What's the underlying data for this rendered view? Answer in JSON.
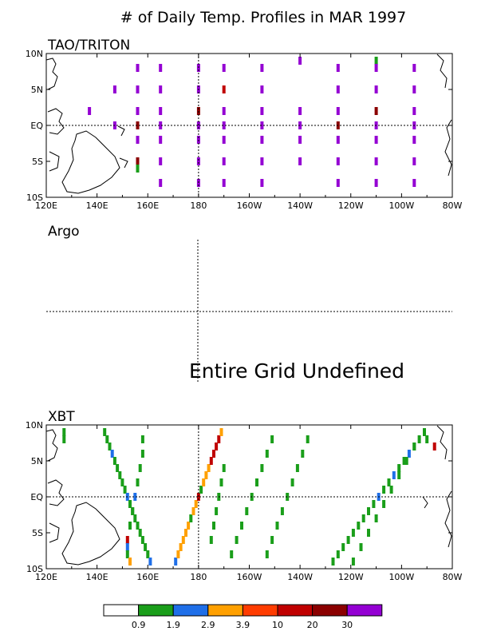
{
  "title": "# of Daily Temp. Profiles in MAR 1997",
  "colors": {
    "frame": "#000000",
    "text": "#000000"
  },
  "colorbar": {
    "colors": [
      "#ffffff",
      "#1a9e1a",
      "#1f6fe8",
      "#ffa000",
      "#ff3c00",
      "#c00000",
      "#8b0000",
      "#9400d3"
    ],
    "labels": [
      "0.9",
      "1.9",
      "2.9",
      "3.9",
      "10",
      "20",
      "30"
    ]
  },
  "chart_data": [
    {
      "type": "heatmap",
      "panel": "TAO/TRITON",
      "x_ticks": [
        "120E",
        "140E",
        "160E",
        "180",
        "160W",
        "140W",
        "120W",
        "100W",
        "80W"
      ],
      "y_ticks": [
        "10N",
        "5N",
        "EQ",
        "5S",
        "10S"
      ],
      "xlim": [
        120,
        280
      ],
      "ylim": [
        -10,
        10
      ],
      "grid": "dashed lines at 180 and EQ",
      "points": [
        [
          137,
          2,
          7
        ],
        [
          147,
          5,
          7
        ],
        [
          147,
          0,
          7
        ],
        [
          156,
          8,
          7
        ],
        [
          156,
          5,
          7
        ],
        [
          156,
          2,
          7
        ],
        [
          156,
          0,
          6
        ],
        [
          156,
          -2,
          7
        ],
        [
          156,
          -5,
          6
        ],
        [
          156,
          -6,
          1
        ],
        [
          165,
          8,
          7
        ],
        [
          165,
          5,
          7
        ],
        [
          165,
          2,
          7
        ],
        [
          165,
          0,
          7
        ],
        [
          165,
          -2,
          7
        ],
        [
          165,
          -5,
          7
        ],
        [
          165,
          -8,
          7
        ],
        [
          180,
          8,
          7
        ],
        [
          180,
          5,
          7
        ],
        [
          180,
          2,
          6
        ],
        [
          180,
          0,
          7
        ],
        [
          180,
          -2,
          7
        ],
        [
          180,
          -5,
          7
        ],
        [
          180,
          -8,
          7
        ],
        [
          190,
          8,
          7
        ],
        [
          190,
          5,
          5
        ],
        [
          190,
          2,
          7
        ],
        [
          190,
          0,
          7
        ],
        [
          190,
          -2,
          7
        ],
        [
          190,
          -5,
          7
        ],
        [
          190,
          -8,
          7
        ],
        [
          205,
          8,
          7
        ],
        [
          205,
          5,
          7
        ],
        [
          205,
          2,
          7
        ],
        [
          205,
          0,
          7
        ],
        [
          205,
          -2,
          7
        ],
        [
          205,
          -5,
          7
        ],
        [
          205,
          -8,
          7
        ],
        [
          220,
          9,
          7
        ],
        [
          220,
          2,
          7
        ],
        [
          220,
          0,
          7
        ],
        [
          220,
          -2,
          7
        ],
        [
          220,
          -5,
          7
        ],
        [
          235,
          8,
          7
        ],
        [
          235,
          5,
          7
        ],
        [
          235,
          2,
          7
        ],
        [
          235,
          0,
          6
        ],
        [
          235,
          -2,
          7
        ],
        [
          235,
          -5,
          7
        ],
        [
          235,
          -8,
          7
        ],
        [
          250,
          9,
          1
        ],
        [
          250,
          8,
          7
        ],
        [
          250,
          5,
          7
        ],
        [
          250,
          2,
          6
        ],
        [
          250,
          0,
          7
        ],
        [
          250,
          -2,
          7
        ],
        [
          250,
          -5,
          7
        ],
        [
          250,
          -8,
          7
        ],
        [
          265,
          8,
          7
        ],
        [
          265,
          5,
          7
        ],
        [
          265,
          2,
          7
        ],
        [
          265,
          0,
          7
        ],
        [
          265,
          -2,
          7
        ],
        [
          265,
          -5,
          7
        ],
        [
          265,
          -8,
          7
        ]
      ]
    },
    {
      "type": "heatmap",
      "panel": "Argo",
      "grid": "dashed lines at 180 and EQ",
      "annotation": "Entire Grid Undefined",
      "points": []
    },
    {
      "type": "heatmap",
      "panel": "XBT",
      "x_ticks": [
        "120E",
        "140E",
        "160E",
        "180",
        "160W",
        "140W",
        "120W",
        "100W",
        "80W"
      ],
      "y_ticks": [
        "10N",
        "5N",
        "EQ",
        "5S",
        "10S"
      ],
      "xlim": [
        120,
        280
      ],
      "ylim": [
        -10,
        10
      ],
      "grid": "dashed lines at 180 and EQ",
      "points": [
        [
          127,
          9,
          1
        ],
        [
          127,
          8,
          1
        ],
        [
          143,
          9,
          1
        ],
        [
          144,
          8,
          1
        ],
        [
          145,
          7,
          1
        ],
        [
          146,
          6,
          2
        ],
        [
          147,
          5,
          1
        ],
        [
          148,
          4,
          1
        ],
        [
          149,
          3,
          1
        ],
        [
          150,
          2,
          1
        ],
        [
          151,
          1,
          1
        ],
        [
          152,
          0,
          2
        ],
        [
          153,
          -1,
          1
        ],
        [
          154,
          -2,
          1
        ],
        [
          155,
          -3,
          1
        ],
        [
          156,
          -4,
          1
        ],
        [
          157,
          -5,
          1
        ],
        [
          158,
          -6,
          1
        ],
        [
          159,
          -7,
          1
        ],
        [
          160,
          -8,
          1
        ],
        [
          161,
          -9,
          2
        ],
        [
          158,
          8,
          1
        ],
        [
          158,
          6,
          1
        ],
        [
          157,
          4,
          1
        ],
        [
          156,
          2,
          1
        ],
        [
          155,
          0,
          2
        ],
        [
          154,
          -2,
          1
        ],
        [
          153,
          -4,
          1
        ],
        [
          152,
          -6,
          5
        ],
        [
          152,
          -7,
          2
        ],
        [
          152,
          -8,
          1
        ],
        [
          153,
          -9,
          3
        ],
        [
          171,
          -9,
          2
        ],
        [
          172,
          -8,
          3
        ],
        [
          173,
          -7,
          3
        ],
        [
          174,
          -6,
          3
        ],
        [
          175,
          -5,
          3
        ],
        [
          176,
          -4,
          3
        ],
        [
          177,
          -3,
          1
        ],
        [
          178,
          -2,
          3
        ],
        [
          179,
          -1,
          3
        ],
        [
          180,
          0,
          5
        ],
        [
          181,
          1,
          1
        ],
        [
          182,
          2,
          3
        ],
        [
          183,
          3,
          3
        ],
        [
          184,
          4,
          3
        ],
        [
          185,
          5,
          5
        ],
        [
          186,
          6,
          5
        ],
        [
          187,
          7,
          5
        ],
        [
          188,
          8,
          5
        ],
        [
          189,
          9,
          3
        ],
        [
          185,
          -6,
          1
        ],
        [
          186,
          -4,
          1
        ],
        [
          187,
          -2,
          1
        ],
        [
          188,
          0,
          1
        ],
        [
          189,
          2,
          1
        ],
        [
          190,
          4,
          1
        ],
        [
          193,
          -8,
          1
        ],
        [
          195,
          -6,
          1
        ],
        [
          197,
          -4,
          1
        ],
        [
          199,
          -2,
          1
        ],
        [
          201,
          0,
          1
        ],
        [
          203,
          2,
          1
        ],
        [
          205,
          4,
          1
        ],
        [
          207,
          6,
          1
        ],
        [
          209,
          8,
          1
        ],
        [
          207,
          -8,
          1
        ],
        [
          209,
          -6,
          1
        ],
        [
          211,
          -4,
          1
        ],
        [
          213,
          -2,
          1
        ],
        [
          215,
          0,
          1
        ],
        [
          217,
          2,
          1
        ],
        [
          219,
          4,
          1
        ],
        [
          221,
          6,
          1
        ],
        [
          223,
          8,
          1
        ],
        [
          233,
          -9,
          1
        ],
        [
          235,
          -8,
          1
        ],
        [
          237,
          -7,
          1
        ],
        [
          239,
          -6,
          1
        ],
        [
          241,
          -5,
          1
        ],
        [
          243,
          -4,
          1
        ],
        [
          245,
          -3,
          1
        ],
        [
          247,
          -2,
          1
        ],
        [
          249,
          -1,
          1
        ],
        [
          251,
          0,
          2
        ],
        [
          253,
          1,
          1
        ],
        [
          255,
          2,
          1
        ],
        [
          257,
          3,
          2
        ],
        [
          259,
          4,
          1
        ],
        [
          261,
          5,
          1
        ],
        [
          263,
          6,
          2
        ],
        [
          265,
          7,
          1
        ],
        [
          267,
          8,
          1
        ],
        [
          269,
          9,
          1
        ],
        [
          241,
          -9,
          1
        ],
        [
          244,
          -7,
          1
        ],
        [
          247,
          -5,
          1
        ],
        [
          250,
          -3,
          1
        ],
        [
          253,
          -1,
          1
        ],
        [
          256,
          1,
          1
        ],
        [
          259,
          3,
          1
        ],
        [
          262,
          5,
          1
        ],
        [
          265,
          7,
          1
        ],
        [
          270,
          8,
          1
        ],
        [
          273,
          7,
          5
        ]
      ]
    }
  ]
}
